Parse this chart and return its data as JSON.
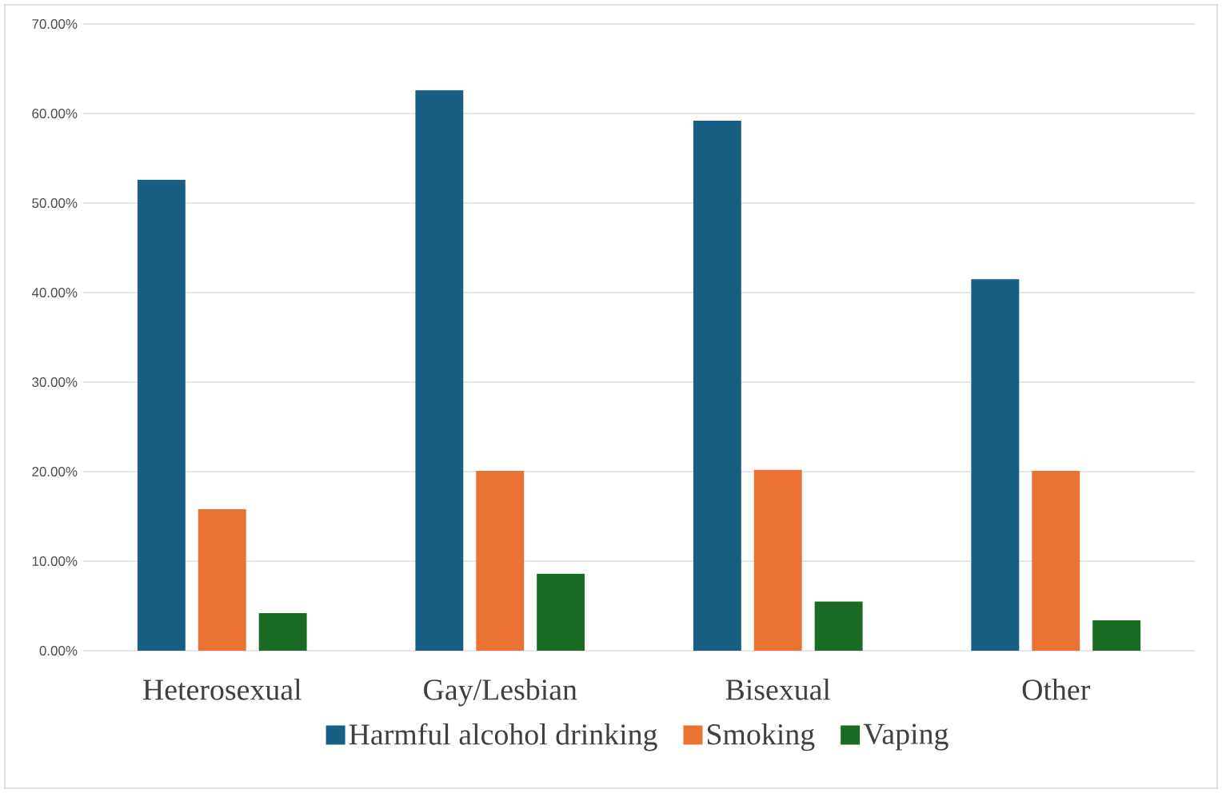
{
  "chart_data": {
    "type": "bar",
    "categories": [
      "Heterosexual",
      "Gay/Lesbian",
      "Bisexual",
      "Other"
    ],
    "series": [
      {
        "name": "Harmful alcohol drinking",
        "color": "#176083",
        "values": [
          52.6,
          62.6,
          59.2,
          41.5
        ]
      },
      {
        "name": "Smoking",
        "color": "#ea7333",
        "values": [
          15.8,
          20.1,
          20.2,
          20.1
        ]
      },
      {
        "name": "Vaping",
        "color": "#1a6b24",
        "values": [
          4.2,
          8.6,
          5.5,
          3.4
        ]
      }
    ],
    "ylim": [
      0,
      70
    ],
    "yticks": [
      {
        "value": 0,
        "label": "0.00%"
      },
      {
        "value": 10,
        "label": "10.00%"
      },
      {
        "value": 20,
        "label": "20.00%"
      },
      {
        "value": 30,
        "label": "30.00%"
      },
      {
        "value": 40,
        "label": "40.00%"
      },
      {
        "value": 50,
        "label": "50.00%"
      },
      {
        "value": 60,
        "label": "60.00%"
      },
      {
        "value": 70,
        "label": "70.00%"
      }
    ],
    "grid": "y",
    "legend": "bottom"
  }
}
